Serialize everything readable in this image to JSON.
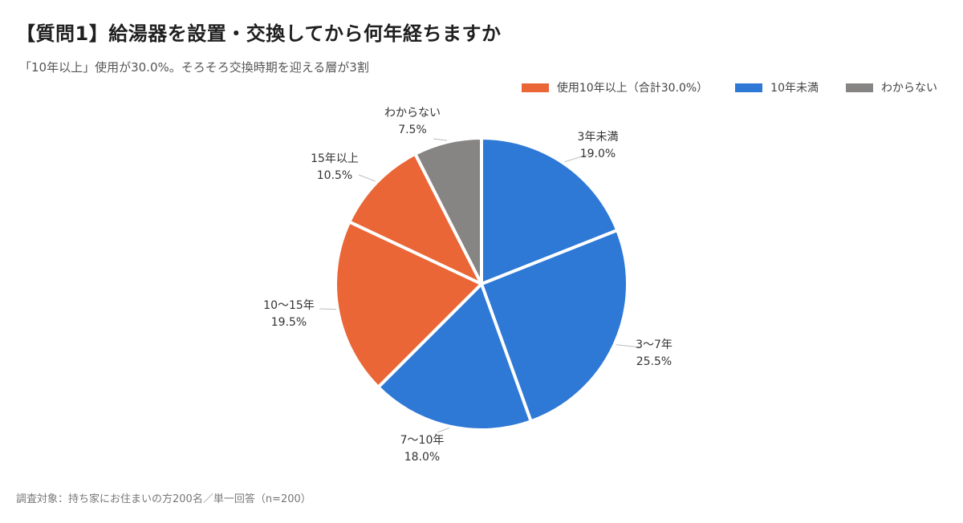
{
  "title": "【質問1】給湯器を設置・交換してから何年経ちますか",
  "subtitle": "「10年以上」使用が30.0%。そろそろ交換時期を迎える層が3割",
  "footer": "調査対象：持ち家にお住まいの方200名／単一回答（n=200）",
  "legend": [
    {
      "label": "使用10年以上（合計30.0%）",
      "color": "#ea6637"
    },
    {
      "label": "10年未満",
      "color": "#2e78d6"
    },
    {
      "label": "わからない",
      "color": "#868583"
    }
  ],
  "chart_data": {
    "type": "pie",
    "legend_position": "top-right",
    "slices": [
      {
        "label": "3年未満",
        "value": 19.0,
        "value_label": "19.0%",
        "color": "#2e78d6"
      },
      {
        "label": "3〜7年",
        "value": 25.5,
        "value_label": "25.5%",
        "color": "#2e78d6"
      },
      {
        "label": "7〜10年",
        "value": 18.0,
        "value_label": "18.0%",
        "color": "#2e78d6"
      },
      {
        "label": "10〜15年",
        "value": 19.5,
        "value_label": "19.5%",
        "color": "#ea6637"
      },
      {
        "label": "15年以上",
        "value": 10.5,
        "value_label": "10.5%",
        "color": "#ea6637"
      },
      {
        "label": "わからない",
        "value": 7.5,
        "value_label": "7.5%",
        "color": "#868583"
      }
    ]
  }
}
